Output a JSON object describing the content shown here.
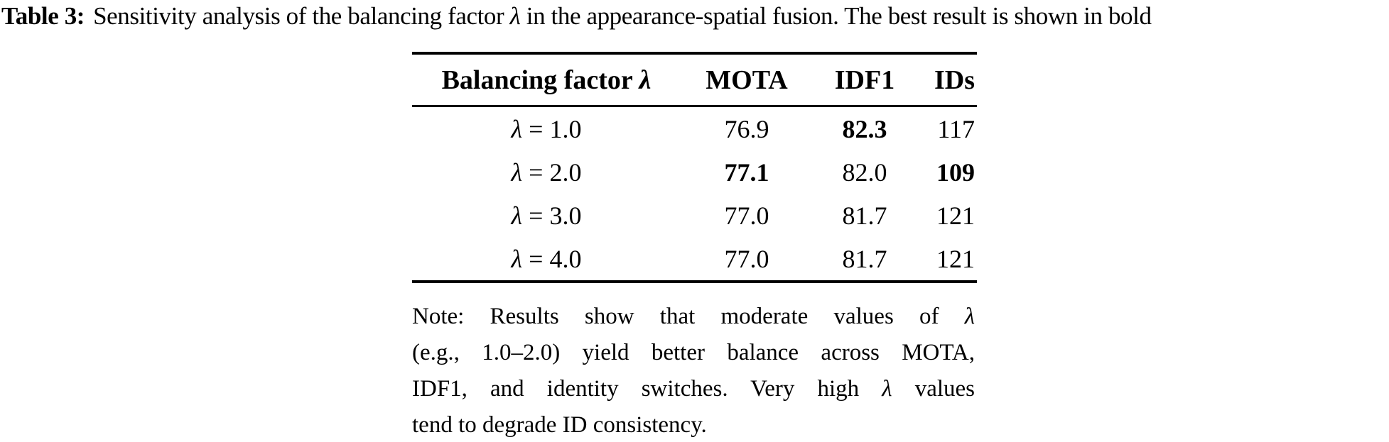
{
  "caption": {
    "label": "Table 3:",
    "text": "Sensitivity analysis of the balancing factor λ in the appearance-spatial fusion. The best result is shown in bold"
  },
  "table": {
    "headers": {
      "factor": "Balancing factor λ",
      "mota": "MOTA",
      "idf1": "IDF1",
      "ids": "IDs"
    },
    "rows": [
      {
        "factor": "λ = 1.0",
        "mota": "76.9",
        "idf1": "82.3",
        "ids": "117",
        "bold_cells": [
          "idf1"
        ]
      },
      {
        "factor": "λ = 2.0",
        "mota": "77.1",
        "idf1": "82.0",
        "ids": "109",
        "bold_cells": [
          "mota",
          "ids"
        ]
      },
      {
        "factor": "λ = 3.0",
        "mota": "77.0",
        "idf1": "81.7",
        "ids": "121",
        "bold_cells": []
      },
      {
        "factor": "λ = 4.0",
        "mota": "77.0",
        "idf1": "81.7",
        "ids": "121",
        "bold_cells": []
      }
    ]
  },
  "note": {
    "lines": [
      "Note: Results show that moderate values of λ",
      "(e.g., 1.0–2.0) yield better balance across MOTA,",
      "IDF1, and identity switches. Very high λ values",
      "tend to degrade ID consistency."
    ],
    "full_text": "Note: Results show that moderate values of λ (e.g., 1.0–2.0) yield better balance across MOTA, IDF1, and identity switches. Very high λ values tend to degrade ID consistency."
  },
  "colors": {
    "text": "#000000",
    "background": "#ffffff",
    "rule": "#000000"
  }
}
